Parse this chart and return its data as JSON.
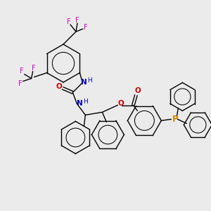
{
  "background_color": "#ebebeb",
  "atom_colors": {
    "C": "#000000",
    "N": "#0000bb",
    "O": "#cc0000",
    "F": "#cc00cc",
    "P": "#cc8800",
    "bonds": "#000000"
  },
  "figsize": [
    3.0,
    3.0
  ],
  "dpi": 100
}
